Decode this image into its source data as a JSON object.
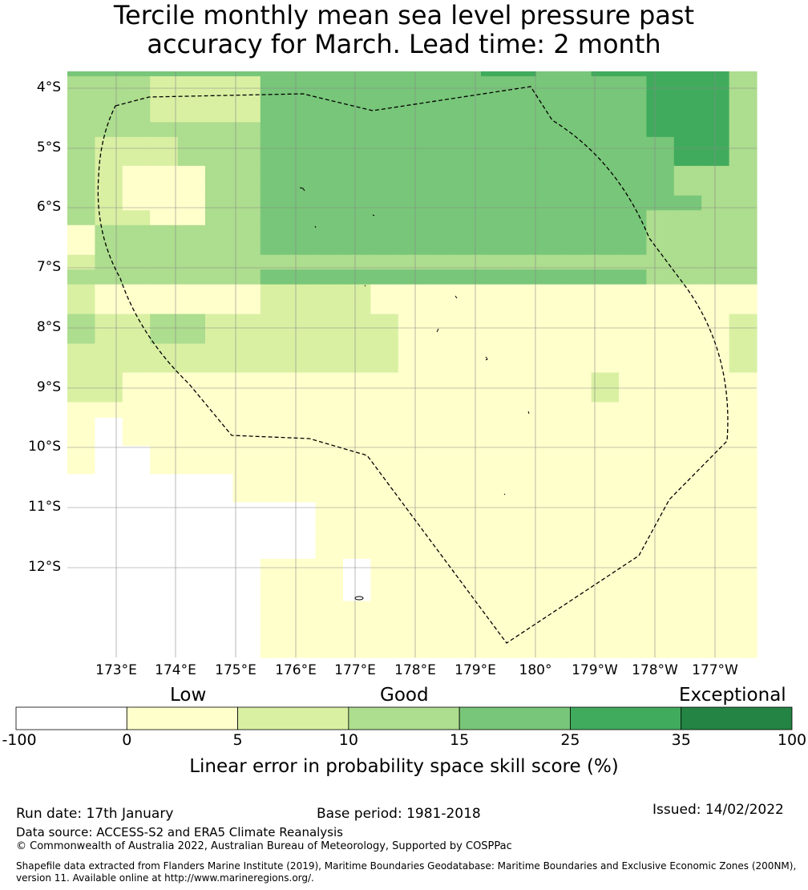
{
  "title": {
    "line1": "Tercile monthly mean sea level pressure past",
    "line2": "accuracy for March. Lead time: 2 month"
  },
  "map": {
    "lat_labels": [
      "4°S",
      "5°S",
      "6°S",
      "7°S",
      "8°S",
      "9°S",
      "10°S",
      "11°S",
      "12°S"
    ],
    "lon_labels": [
      "173°E",
      "174°E",
      "175°E",
      "176°E",
      "177°E",
      "178°E",
      "179°E",
      "180°",
      "179°W",
      "178°W",
      "177°W"
    ],
    "grid_rows": [
      "4444444444444445544555553",
      "3332222444444444444445553",
      "3332222444444444444445553",
      "3333333444444444444445553",
      "3222333444444444444444553",
      "3211133444444444444444333",
      "3211133444444444444444333",
      "3211133444444444444444433",
      "3221133444444444444443333",
      "1333333444444444444443333",
      "1333333444444444444443333",
      "2333333333333333333333333",
      "3333333444444444444443333",
      "2111111222211111111111111",
      "2111111222211111111111111",
      "3223322222221111111111112",
      "3223322222221111111111112",
      "2222222222221111111111112",
      "2222222222221111111111112",
      "2211111111111111111211111",
      "2211111111111111111211111",
      "1111111111111111111111111",
      "1011111111111111111111111",
      "1011111111111111111111111",
      "1001111111111111111111111",
      "1001111111111111111111111",
      "0000001111111111111111111",
      "0000001111111111111111111",
      "0000000001111111111111111",
      "0000000001111111111111111",
      "0000000001111111111111111",
      "0000000001111111111111111",
      "0000000111011111111111111",
      "0000000111011111111111111",
      "0000000111011111111111111",
      "0000000111111111111111111",
      "0000000111111111111111111",
      "0000000111111111111111111",
      "0000000111111111111111111"
    ],
    "row_heights": [
      14,
      88,
      42,
      42,
      82,
      42,
      42,
      42,
      42,
      42,
      42,
      42,
      42,
      42,
      42,
      42,
      42,
      42,
      40,
      44,
      40,
      44,
      40,
      40,
      40,
      40,
      40,
      40,
      40,
      40,
      40,
      40,
      40,
      40,
      40,
      40,
      40,
      40,
      40
    ],
    "palette_note": "class 0 = below 0, 1 = 0-5, 2 = 5-10, 3 = 10-15, 4 = 15-25, 5 = 25-35"
  },
  "legend": {
    "categories": [
      "Low",
      "Good",
      "Exceptional"
    ],
    "ticks": [
      "-100",
      "0",
      "5",
      "10",
      "15",
      "25",
      "35",
      "100"
    ],
    "colors": [
      "#ffffff",
      "#ffffcc",
      "#d9f0a3",
      "#addd8e",
      "#78c679",
      "#41ab5d",
      "#238443"
    ],
    "label": "Linear error in probability space skill score (%)"
  },
  "footer": {
    "run_date": "Run date: 17th January",
    "base_period": "Base period: 1981-2018",
    "issued": "Issued: 14/02/2022",
    "data_source": "Data source: ACCESS-S2 and ERA5 Climate Reanalysis",
    "copyright": "© Commonwealth of Australia 2022, Australian Bureau of Meteorology, Supported by COSPPac",
    "shapefile": "Shapefile data extracted from Flanders Marine Institute (2019), Maritime Boundaries Geodatabase: Maritime Boundaries and Exclusive Economic Zones (200NM), version 11. Available online at http://www.marineregions.org/."
  }
}
